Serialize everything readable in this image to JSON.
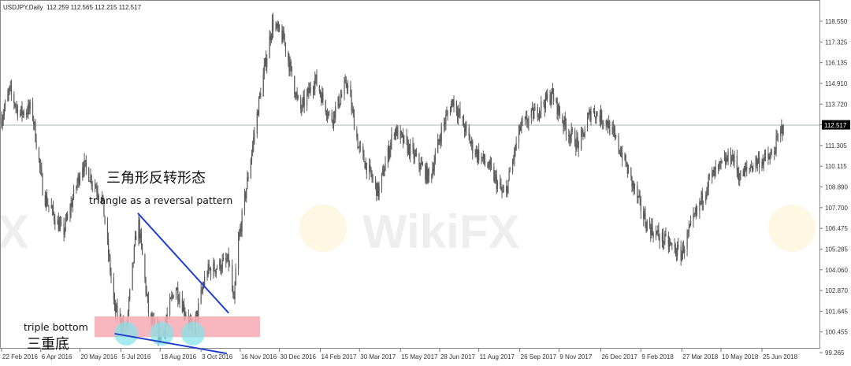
{
  "chart_data": {
    "type": "candlestick",
    "title": "USDJPY,Daily",
    "ohlc_readout": [
      "112.259",
      "112.565",
      "112.215",
      "112.517"
    ],
    "last_price": 112.517,
    "ylim": [
      99.265,
      118.9
    ],
    "y_ticks": [
      "118.550",
      "117.325",
      "116.135",
      "114.910",
      "113.720",
      "112.517",
      "111.305",
      "110.115",
      "108.890",
      "107.700",
      "106.475",
      "105.285",
      "104.060",
      "102.870",
      "101.645",
      "100.455",
      "99.265"
    ],
    "x_ticks": [
      "22 Feb 2016",
      "6 Apr 2016",
      "20 May 2016",
      "5 Jul 2016",
      "18 Aug 2016",
      "3 Oct 2016",
      "16 Nov 2016",
      "30 Dec 2016",
      "14 Feb 2017",
      "30 Mar 2017",
      "15 May 2017",
      "28 Jun 2017",
      "11 Aug 2017",
      "26 Sep 2017",
      "9 Nov 2017",
      "26 Dec 2017",
      "9 Feb 2018",
      "27 Mar 2018",
      "10 May 2018",
      "25 Jun 2018"
    ],
    "x_tick_dates": [
      "2016-02-22",
      "2016-04-06",
      "2016-05-20",
      "2016-07-05",
      "2016-08-18",
      "2016-10-03",
      "2016-11-16",
      "2016-12-30",
      "2017-02-14",
      "2017-03-30",
      "2017-05-15",
      "2017-06-28",
      "2017-08-11",
      "2017-09-26",
      "2017-11-09",
      "2017-12-26",
      "2018-02-09",
      "2018-03-27",
      "2018-05-10",
      "2018-06-25"
    ],
    "approx_closes": [
      [
        "2016-02-22",
        112.9
      ],
      [
        "2016-03-02",
        114.5
      ],
      [
        "2016-03-13",
        113.2
      ],
      [
        "2016-03-27",
        113.5
      ],
      [
        "2016-04-09",
        108.5
      ],
      [
        "2016-05-01",
        106.2
      ],
      [
        "2016-05-23",
        110.3
      ],
      [
        "2016-06-14",
        108.3
      ],
      [
        "2016-06-28",
        101.8
      ],
      [
        "2016-07-11",
        100.6
      ],
      [
        "2016-07-24",
        107.2
      ],
      [
        "2016-08-06",
        101.2
      ],
      [
        "2016-08-20",
        100.2
      ],
      [
        "2016-09-04",
        103.2
      ],
      [
        "2016-09-24",
        100.5
      ],
      [
        "2016-10-09",
        104.0
      ],
      [
        "2016-11-03",
        104.6
      ],
      [
        "2016-11-09",
        102.0
      ],
      [
        "2016-11-12",
        105.0
      ],
      [
        "2016-12-08",
        114.2
      ],
      [
        "2016-12-22",
        118.4
      ],
      [
        "2017-01-04",
        117.5
      ],
      [
        "2017-01-22",
        113.3
      ],
      [
        "2017-02-08",
        115.2
      ],
      [
        "2017-02-26",
        112.8
      ],
      [
        "2017-03-16",
        115.0
      ],
      [
        "2017-03-29",
        111.2
      ],
      [
        "2017-04-20",
        108.6
      ],
      [
        "2017-05-08",
        112.3
      ],
      [
        "2017-05-25",
        111.1
      ],
      [
        "2017-06-17",
        109.4
      ],
      [
        "2017-06-30",
        112.2
      ],
      [
        "2017-07-13",
        114.0
      ],
      [
        "2017-08-04",
        111.2
      ],
      [
        "2017-08-22",
        110.1
      ],
      [
        "2017-09-09",
        108.3
      ],
      [
        "2017-09-26",
        112.3
      ],
      [
        "2017-11-01",
        114.3
      ],
      [
        "2017-11-18",
        112.2
      ],
      [
        "2017-12-02",
        111.3
      ],
      [
        "2017-12-15",
        113.4
      ],
      [
        "2018-01-02",
        112.7
      ],
      [
        "2018-01-19",
        110.8
      ],
      [
        "2018-02-15",
        106.8
      ],
      [
        "2018-02-24",
        106.3
      ],
      [
        "2018-03-26",
        105.0
      ],
      [
        "2018-04-08",
        106.8
      ],
      [
        "2018-04-26",
        109.3
      ],
      [
        "2018-05-22",
        110.8
      ],
      [
        "2018-05-31",
        109.5
      ],
      [
        "2018-06-18",
        110.4
      ],
      [
        "2018-07-05",
        110.6
      ],
      [
        "2018-07-19",
        112.517
      ]
    ],
    "annotations": {
      "pattern_cn": "三角形反转形态",
      "pattern_en": "triangle as a reversal pattern",
      "bottom_en": "triple bottom",
      "bottom_cn": "三重底",
      "upper_trendline": [
        [
          "2016-07-24",
          107.4
        ],
        [
          "2016-11-03",
          101.6
        ]
      ],
      "lower_trendline": [
        [
          "2016-06-28",
          100.4
        ],
        [
          "2016-11-01",
          99.25
        ]
      ],
      "support_zone": [
        100.2,
        101.4
      ],
      "bottom_markers": [
        "2016-07-11",
        "2016-08-20",
        "2016-09-24"
      ]
    },
    "colors": {
      "bars": "#5a5a5a",
      "trendline": "#1f3fd0",
      "zone": "#f7aab4",
      "markers": "#7fe3ea",
      "price_line": "#a8b4b4",
      "price_tag": "#000000"
    },
    "grid": false
  },
  "watermark": "WikiFX"
}
